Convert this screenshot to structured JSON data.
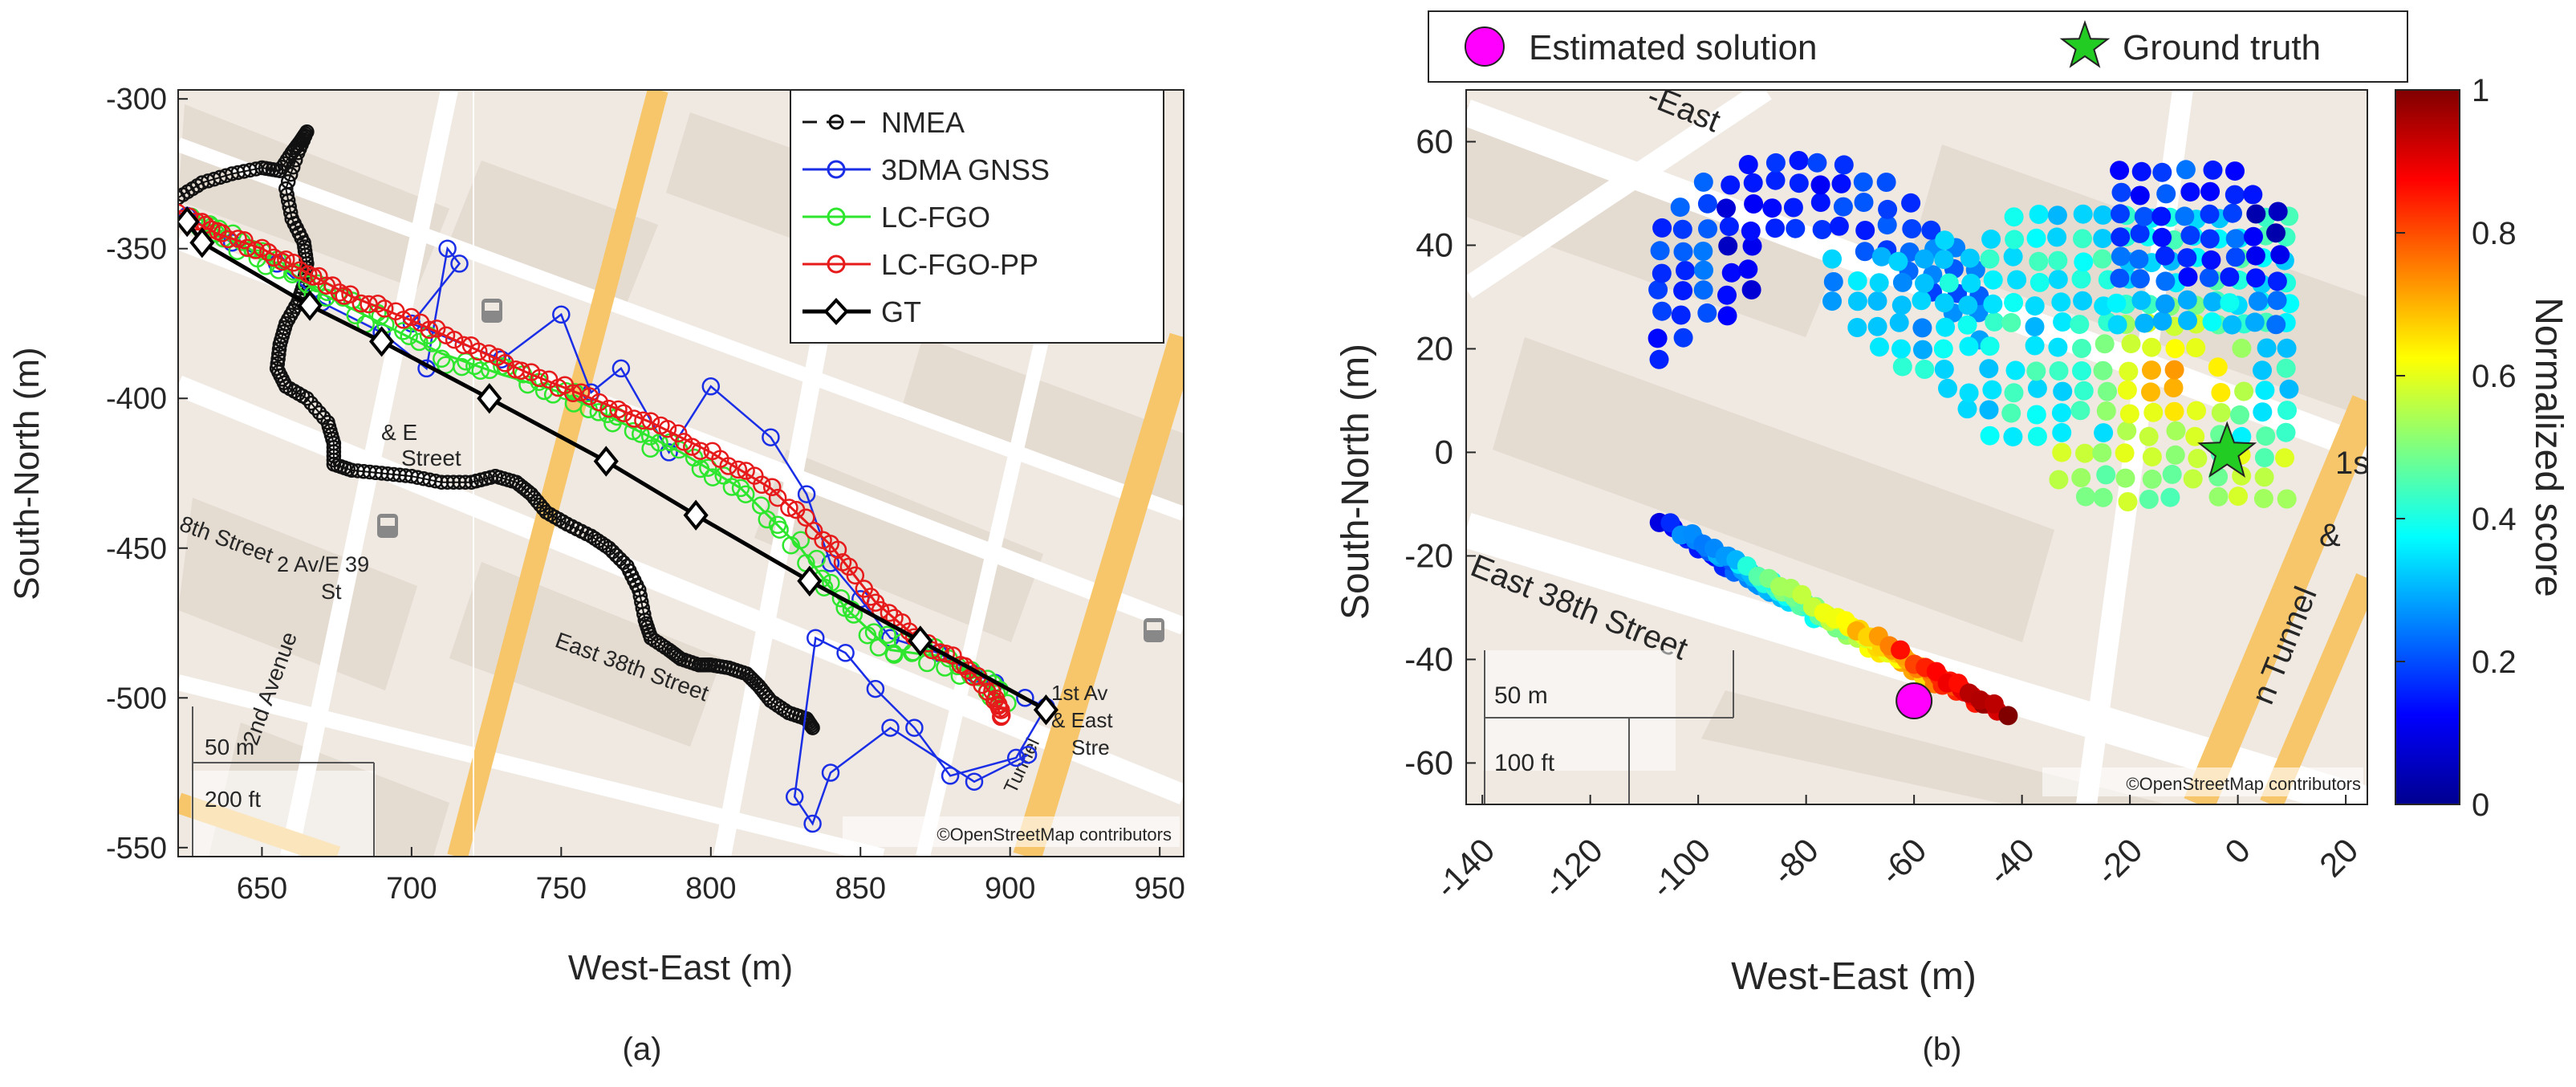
{
  "colors": {
    "nmea": "#111111",
    "gnss": "#1a2ee6",
    "lcfgo": "#2ee62e",
    "lcfgopp": "#e61a1a",
    "gt": "#000000",
    "estimated": "#ff00ff",
    "ground_truth": "#22cc22",
    "map_bg": "#efe9e2",
    "road": "#f7c66b",
    "block": "#e2d9cf"
  },
  "chart_data": [
    {
      "type": "line",
      "panel_label": "(a)",
      "xlabel": "West-East (m)",
      "ylabel": "South-North (m)",
      "xlim": [
        622,
        958
      ],
      "ylim": [
        -553,
        -297
      ],
      "xticks": [
        650,
        700,
        750,
        800,
        850,
        900,
        950
      ],
      "yticks": [
        -300,
        -350,
        -400,
        -450,
        -500,
        -550
      ],
      "attribution": "©OpenStreetMap contributors",
      "scale_bar": {
        "metric": "50 m",
        "imperial": "200 ft"
      },
      "map_labels": [
        "2 Av/E 39",
        "St",
        "Street",
        "& E",
        "8th Street",
        "East 38th Street",
        "2nd Avenue",
        "1st Av",
        "& East",
        "Stre",
        "Tunnel"
      ],
      "legend": [
        "NMEA",
        "3DMA GNSS",
        "LC-FGO",
        "LC-FGO-PP",
        "GT"
      ],
      "series": [
        {
          "name": "GT",
          "style": "diamond-line",
          "x": [
            625,
            630,
            666,
            690,
            726,
            765,
            795,
            833,
            870,
            912
          ],
          "y": [
            -341,
            -348,
            -369,
            -381,
            -400,
            -421,
            -439,
            -461,
            -481,
            -504
          ]
        },
        {
          "name": "NMEA",
          "style": "circle-dash",
          "x": [
            622,
            630,
            640,
            650,
            656,
            660,
            663,
            665,
            662,
            658,
            660,
            664,
            665,
            664,
            662,
            658,
            656,
            655,
            658,
            665,
            672,
            674,
            674,
            680,
            690,
            700,
            710,
            720,
            728,
            735,
            740,
            745,
            752,
            760,
            766,
            772,
            776,
            778,
            780,
            786,
            790,
            796,
            800,
            806,
            812,
            816,
            820,
            826,
            832,
            834
          ],
          "y": [
            -333,
            -328,
            -325,
            -323,
            -324,
            -318,
            -314,
            -311,
            -318,
            -330,
            -340,
            -348,
            -355,
            -362,
            -368,
            -375,
            -382,
            -390,
            -396,
            -400,
            -408,
            -415,
            -422,
            -424,
            -425,
            -426,
            -428,
            -428,
            -426,
            -428,
            -432,
            -438,
            -442,
            -446,
            -450,
            -456,
            -464,
            -474,
            -480,
            -484,
            -487,
            -489,
            -489,
            -490,
            -492,
            -496,
            -501,
            -505,
            -507,
            -510
          ]
        },
        {
          "name": "3DMA GNSS",
          "style": "circle",
          "x": [
            625,
            640,
            655,
            670,
            690,
            705,
            712,
            716,
            700,
            730,
            750,
            760,
            770,
            786,
            800,
            820,
            832,
            840,
            850,
            860,
            876,
            888,
            895,
            905,
            912,
            902,
            880,
            868,
            855,
            845,
            835,
            828,
            834,
            840,
            860,
            888,
            906
          ],
          "y": [
            -339,
            -348,
            -355,
            -368,
            -378,
            -390,
            -350,
            -355,
            -375,
            -387,
            -372,
            -398,
            -390,
            -418,
            -396,
            -413,
            -432,
            -455,
            -467,
            -480,
            -485,
            -492,
            -495,
            -500,
            -503,
            -520,
            -526,
            -510,
            -497,
            -485,
            -480,
            -533,
            -542,
            -525,
            -510,
            -528,
            -519
          ]
        },
        {
          "name": "LC-FGO",
          "style": "circle",
          "x": [
            628,
            640,
            655,
            670,
            690,
            710,
            730,
            750,
            770,
            790,
            810,
            830,
            845,
            860,
            875,
            890,
            898
          ],
          "y": [
            -339,
            -347,
            -355,
            -365,
            -375,
            -385,
            -392,
            -398,
            -408,
            -418,
            -430,
            -450,
            -470,
            -484,
            -486,
            -494,
            -501
          ]
        },
        {
          "name": "LC-FGO-PP",
          "style": "circle",
          "x": [
            622,
            635,
            650,
            665,
            680,
            700,
            720,
            740,
            760,
            780,
            800,
            820,
            840,
            855,
            870,
            885,
            895,
            897
          ],
          "y": [
            -338,
            -345,
            -350,
            -358,
            -366,
            -374,
            -383,
            -392,
            -400,
            -408,
            -418,
            -430,
            -449,
            -468,
            -481,
            -489,
            -500,
            -507
          ]
        }
      ]
    },
    {
      "type": "scatter",
      "panel_label": "(b)",
      "xlabel": "West-East (m)",
      "ylabel": "South-North (m)",
      "xlim": [
        -143,
        24
      ],
      "ylim": [
        -68,
        70
      ],
      "xticks": [
        -140,
        -120,
        -100,
        -80,
        -60,
        -40,
        -20,
        0,
        20
      ],
      "yticks": [
        60,
        40,
        20,
        0,
        -20,
        -40,
        -60
      ],
      "attribution": "©OpenStreetMap contributors",
      "scale_bar": {
        "metric": "50 m",
        "imperial": "100 ft"
      },
      "map_labels": [
        "East 38th Street",
        "-East",
        "1s",
        "&",
        "n Tunnel"
      ],
      "legend": [
        "Estimated solution",
        "Ground truth"
      ],
      "colorbar": {
        "label": "Normalized score",
        "range": [
          0,
          1
        ],
        "ticks": [
          0,
          0.2,
          0.4,
          0.6,
          0.8,
          1
        ]
      },
      "estimated_solution": {
        "x": -60,
        "y": -48
      },
      "ground_truth": {
        "x": -2,
        "y": 0
      },
      "regions": [
        {
          "name": "upper-left arm",
          "x_range": [
            -107,
            -45
          ],
          "y_range": [
            16,
            60
          ],
          "score_range": [
            0.05,
            0.3
          ]
        },
        {
          "name": "central cluster",
          "x_range": [
            -75,
            10
          ],
          "y_range": [
            -8,
            48
          ],
          "score_range": [
            0.3,
            0.6
          ]
        },
        {
          "name": "upper-right arm",
          "x_range": [
            -22,
            10
          ],
          "y_range": [
            25,
            58
          ],
          "score_range": [
            0.05,
            0.35
          ]
        },
        {
          "name": "hotspot near ground truth",
          "x_range": [
            -25,
            2
          ],
          "y_range": [
            4,
            24
          ],
          "score_range": [
            0.65,
            0.8
          ]
        },
        {
          "name": "lower-left street strip",
          "x_range": [
            -104,
            -42
          ],
          "y_range": [
            -52,
            -15
          ],
          "score_range": [
            0.1,
            1.0
          ]
        }
      ]
    }
  ]
}
